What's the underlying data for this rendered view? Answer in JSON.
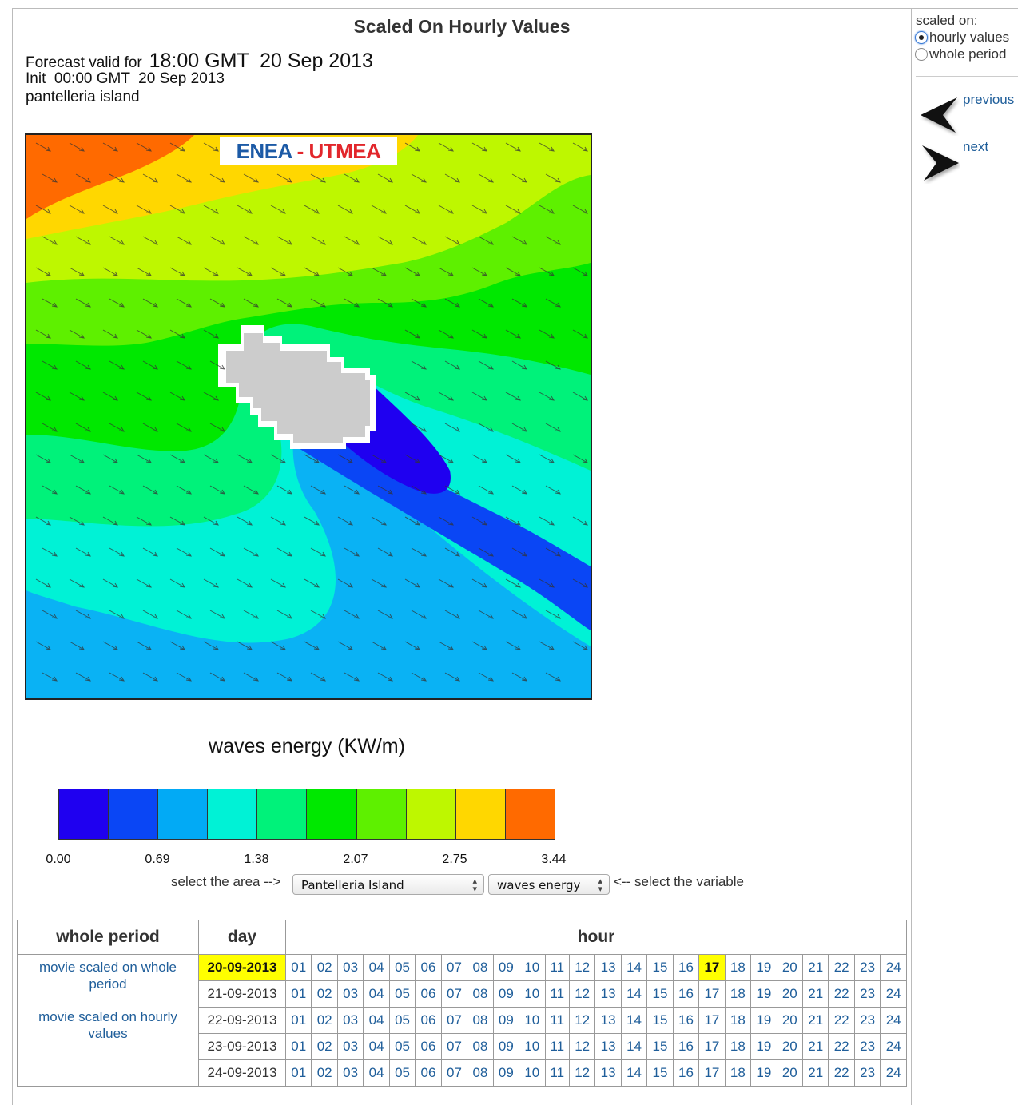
{
  "page": {
    "title": "Scaled On Hourly Values"
  },
  "forecast": {
    "valid_label": "Forecast valid for",
    "valid_time": "18:00 GMT  20 Sep 2013",
    "init": "Init  00:00 GMT  20 Sep 2013",
    "area_name": "pantelleria island"
  },
  "logo": {
    "enea": "ENEA",
    "utmea": " - UTMEA"
  },
  "map": {
    "variable_title": "waves energy (KW/m)"
  },
  "colorbar": {
    "colors": [
      "#1f00f0",
      "#0a46f5",
      "#02aaf5",
      "#00f2d6",
      "#00f27a",
      "#00e800",
      "#5ef000",
      "#bef700",
      "#ffd700",
      "#ff6a00"
    ],
    "ticks": [
      "0.00",
      "0.69",
      "1.38",
      "2.07",
      "2.75",
      "3.44"
    ]
  },
  "controls": {
    "area_label": "select the area -->",
    "area_value": "Pantelleria Island",
    "variable_value": "waves energy",
    "variable_label": "<-- select the variable"
  },
  "sidebar": {
    "scaled_on_label": "scaled on:",
    "opt_hourly": "hourly values",
    "opt_whole": "whole period",
    "hourly_selected": true,
    "previous": "previous",
    "next": "next"
  },
  "table": {
    "headers": {
      "whole": "whole period",
      "day": "day",
      "hour": "hour"
    },
    "movie_whole": "movie scaled on whole period",
    "movie_hourly": "movie scaled on hourly values",
    "days": [
      "20-09-2013",
      "21-09-2013",
      "22-09-2013",
      "23-09-2013",
      "24-09-2013"
    ],
    "hours": [
      "01",
      "02",
      "03",
      "04",
      "05",
      "06",
      "07",
      "08",
      "09",
      "10",
      "11",
      "12",
      "13",
      "14",
      "15",
      "16",
      "17",
      "18",
      "19",
      "20",
      "21",
      "22",
      "23",
      "24"
    ],
    "current_day": "20-09-2013",
    "current_hour": "17"
  }
}
